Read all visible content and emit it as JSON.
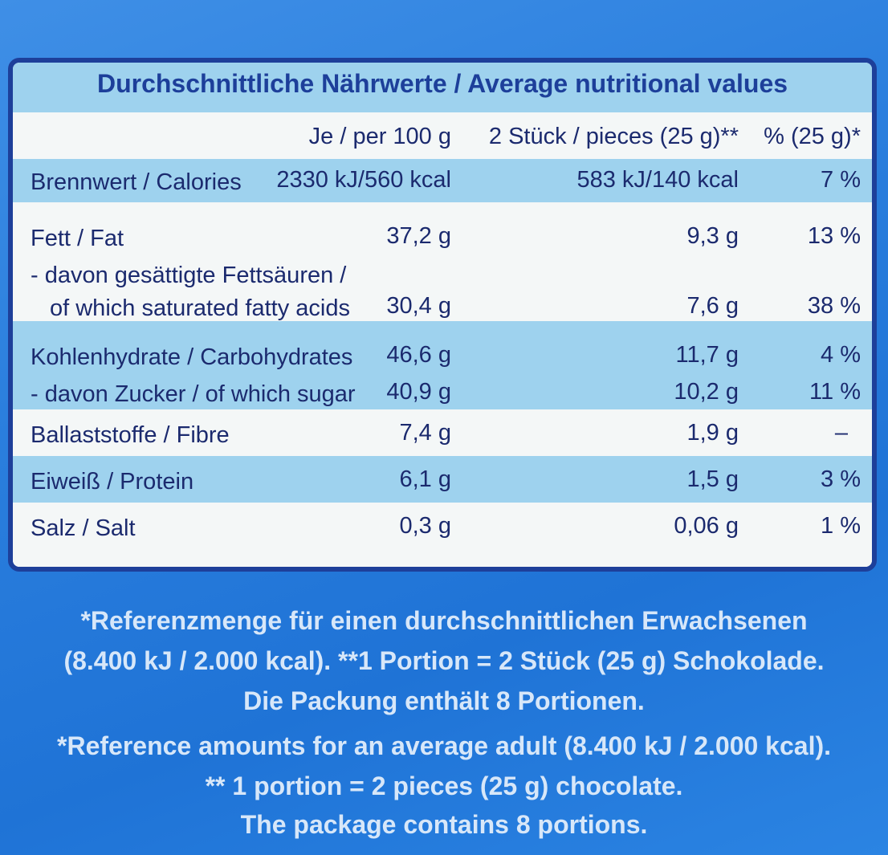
{
  "table": {
    "title": "Durchschnittliche Nährwerte / Average nutritional values",
    "headers": {
      "per100": "Je / per 100 g",
      "portion": "2 Stück / pieces (25 g)**",
      "percent": "% (25 g)*"
    },
    "rows": [
      {
        "label": "Brennwert / Calories",
        "per100": "2330 kJ/560 kcal",
        "portion": "583 kJ/140 kcal",
        "percent": "7 %"
      },
      {
        "label": "Fett / Fat",
        "per100": "37,2 g",
        "portion": "9,3 g",
        "percent": "13 %"
      },
      {
        "label": "- davon gesättigte Fettsäuren /",
        "label2": "of which saturated fatty acids",
        "per100": "30,4 g",
        "portion": "7,6 g",
        "percent": "38 %"
      },
      {
        "label": "Kohlenhydrate / Carbohydrates",
        "per100": "46,6 g",
        "portion": "11,7 g",
        "percent": "4 %"
      },
      {
        "label": "- davon Zucker / of which sugar",
        "per100": "40,9 g",
        "portion": "10,2 g",
        "percent": "11 %"
      },
      {
        "label": "Ballaststoffe / Fibre",
        "per100": "7,4 g",
        "portion": "1,9 g",
        "percent": "–"
      },
      {
        "label": "Eiweiß / Protein",
        "per100": "6,1 g",
        "portion": "1,5 g",
        "percent": "3 %"
      },
      {
        "label": "Salz / Salt",
        "per100": "0,3 g",
        "portion": "0,06 g",
        "percent": "1 %"
      }
    ]
  },
  "footnotes": {
    "de": [
      "*Referenzmenge für einen durchschnittlichen Erwachsenen",
      "(8.400 kJ / 2.000 kcal). **1 Portion = 2 Stück (25 g) Schokolade.",
      "Die Packung enthält 8 Portionen."
    ],
    "en": [
      "*Reference amounts for an average adult (8.400 kJ / 2.000 kcal).",
      "** 1 portion = 2 pieces (25 g) chocolate.",
      "The package contains 8 portions."
    ]
  },
  "colors": {
    "border": "#1d3f9a",
    "band": "#9ed2ee",
    "text": "#1b2a6e",
    "background": "#2b7fde"
  }
}
